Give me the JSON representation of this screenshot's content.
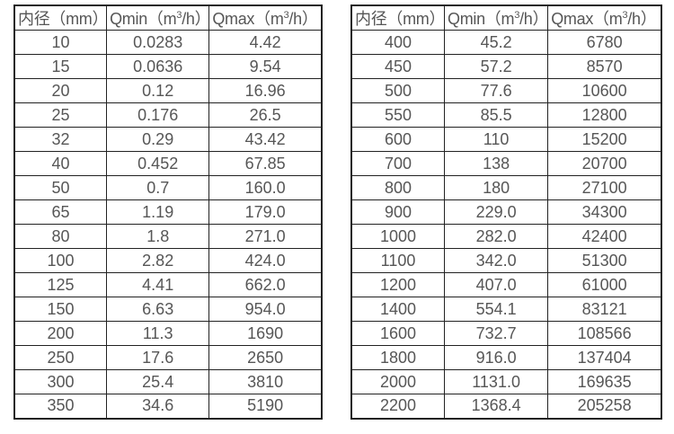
{
  "table_left": {
    "headers": [
      "内径（mm）",
      "Qmin（m³/h）",
      "Qmax（m³/h）"
    ],
    "rows": [
      [
        "10",
        "0.0283",
        "4.42"
      ],
      [
        "15",
        "0.0636",
        "9.54"
      ],
      [
        "20",
        "0.12",
        "16.96"
      ],
      [
        "25",
        "0.176",
        "26.5"
      ],
      [
        "32",
        "0.29",
        "43.42"
      ],
      [
        "40",
        "0.452",
        "67.85"
      ],
      [
        "50",
        "0.7",
        "160.0"
      ],
      [
        "65",
        "1.19",
        "179.0"
      ],
      [
        "80",
        "1.8",
        "271.0"
      ],
      [
        "100",
        "2.82",
        "424.0"
      ],
      [
        "125",
        "4.41",
        "662.0"
      ],
      [
        "150",
        "6.63",
        "954.0"
      ],
      [
        "200",
        "11.3",
        "1690"
      ],
      [
        "250",
        "17.6",
        "2650"
      ],
      [
        "300",
        "25.4",
        "3810"
      ],
      [
        "350",
        "34.6",
        "5190"
      ]
    ]
  },
  "table_right": {
    "headers": [
      "内径（mm）",
      "Qmin（m³/h）",
      "Qmax（m³/h）"
    ],
    "rows": [
      [
        "400",
        "45.2",
        "6780"
      ],
      [
        "450",
        "57.2",
        "8570"
      ],
      [
        "500",
        "77.6",
        "10600"
      ],
      [
        "550",
        "85.5",
        "12800"
      ],
      [
        "600",
        "110",
        "15200"
      ],
      [
        "700",
        "138",
        "20700"
      ],
      [
        "800",
        "180",
        "27100"
      ],
      [
        "900",
        "229.0",
        "34300"
      ],
      [
        "1000",
        "282.0",
        "42400"
      ],
      [
        "1100",
        "342.0",
        "51300"
      ],
      [
        "1200",
        "407.0",
        "61000"
      ],
      [
        "1400",
        "554.1",
        "83121"
      ],
      [
        "1600",
        "732.7",
        "108566"
      ],
      [
        "1800",
        "916.0",
        "137404"
      ],
      [
        "2000",
        "1131.0",
        "169635"
      ],
      [
        "2200",
        "1368.4",
        "205258"
      ]
    ]
  },
  "colors": {
    "border": "#222222",
    "text": "#565656",
    "background": "#ffffff"
  },
  "chart_data": [
    {
      "type": "table",
      "title": "",
      "columns": [
        "内径（mm）",
        "Qmin（m³/h）",
        "Qmax（m³/h）"
      ],
      "rows": [
        [
          10,
          0.0283,
          4.42
        ],
        [
          15,
          0.0636,
          9.54
        ],
        [
          20,
          0.12,
          16.96
        ],
        [
          25,
          0.176,
          26.5
        ],
        [
          32,
          0.29,
          43.42
        ],
        [
          40,
          0.452,
          67.85
        ],
        [
          50,
          0.7,
          160.0
        ],
        [
          65,
          1.19,
          179.0
        ],
        [
          80,
          1.8,
          271.0
        ],
        [
          100,
          2.82,
          424.0
        ],
        [
          125,
          4.41,
          662.0
        ],
        [
          150,
          6.63,
          954.0
        ],
        [
          200,
          11.3,
          1690
        ],
        [
          250,
          17.6,
          2650
        ],
        [
          300,
          25.4,
          3810
        ],
        [
          350,
          34.6,
          5190
        ]
      ]
    },
    {
      "type": "table",
      "title": "",
      "columns": [
        "内径（mm）",
        "Qmin（m³/h）",
        "Qmax（m³/h）"
      ],
      "rows": [
        [
          400,
          45.2,
          6780
        ],
        [
          450,
          57.2,
          8570
        ],
        [
          500,
          77.6,
          10600
        ],
        [
          550,
          85.5,
          12800
        ],
        [
          600,
          110,
          15200
        ],
        [
          700,
          138,
          20700
        ],
        [
          800,
          180,
          27100
        ],
        [
          900,
          229.0,
          34300
        ],
        [
          1000,
          282.0,
          42400
        ],
        [
          1100,
          342.0,
          51300
        ],
        [
          1200,
          407.0,
          61000
        ],
        [
          1400,
          554.1,
          83121
        ],
        [
          1600,
          732.7,
          108566
        ],
        [
          1800,
          916.0,
          137404
        ],
        [
          2000,
          1131.0,
          169635
        ],
        [
          2200,
          1368.4,
          205258
        ]
      ]
    }
  ]
}
